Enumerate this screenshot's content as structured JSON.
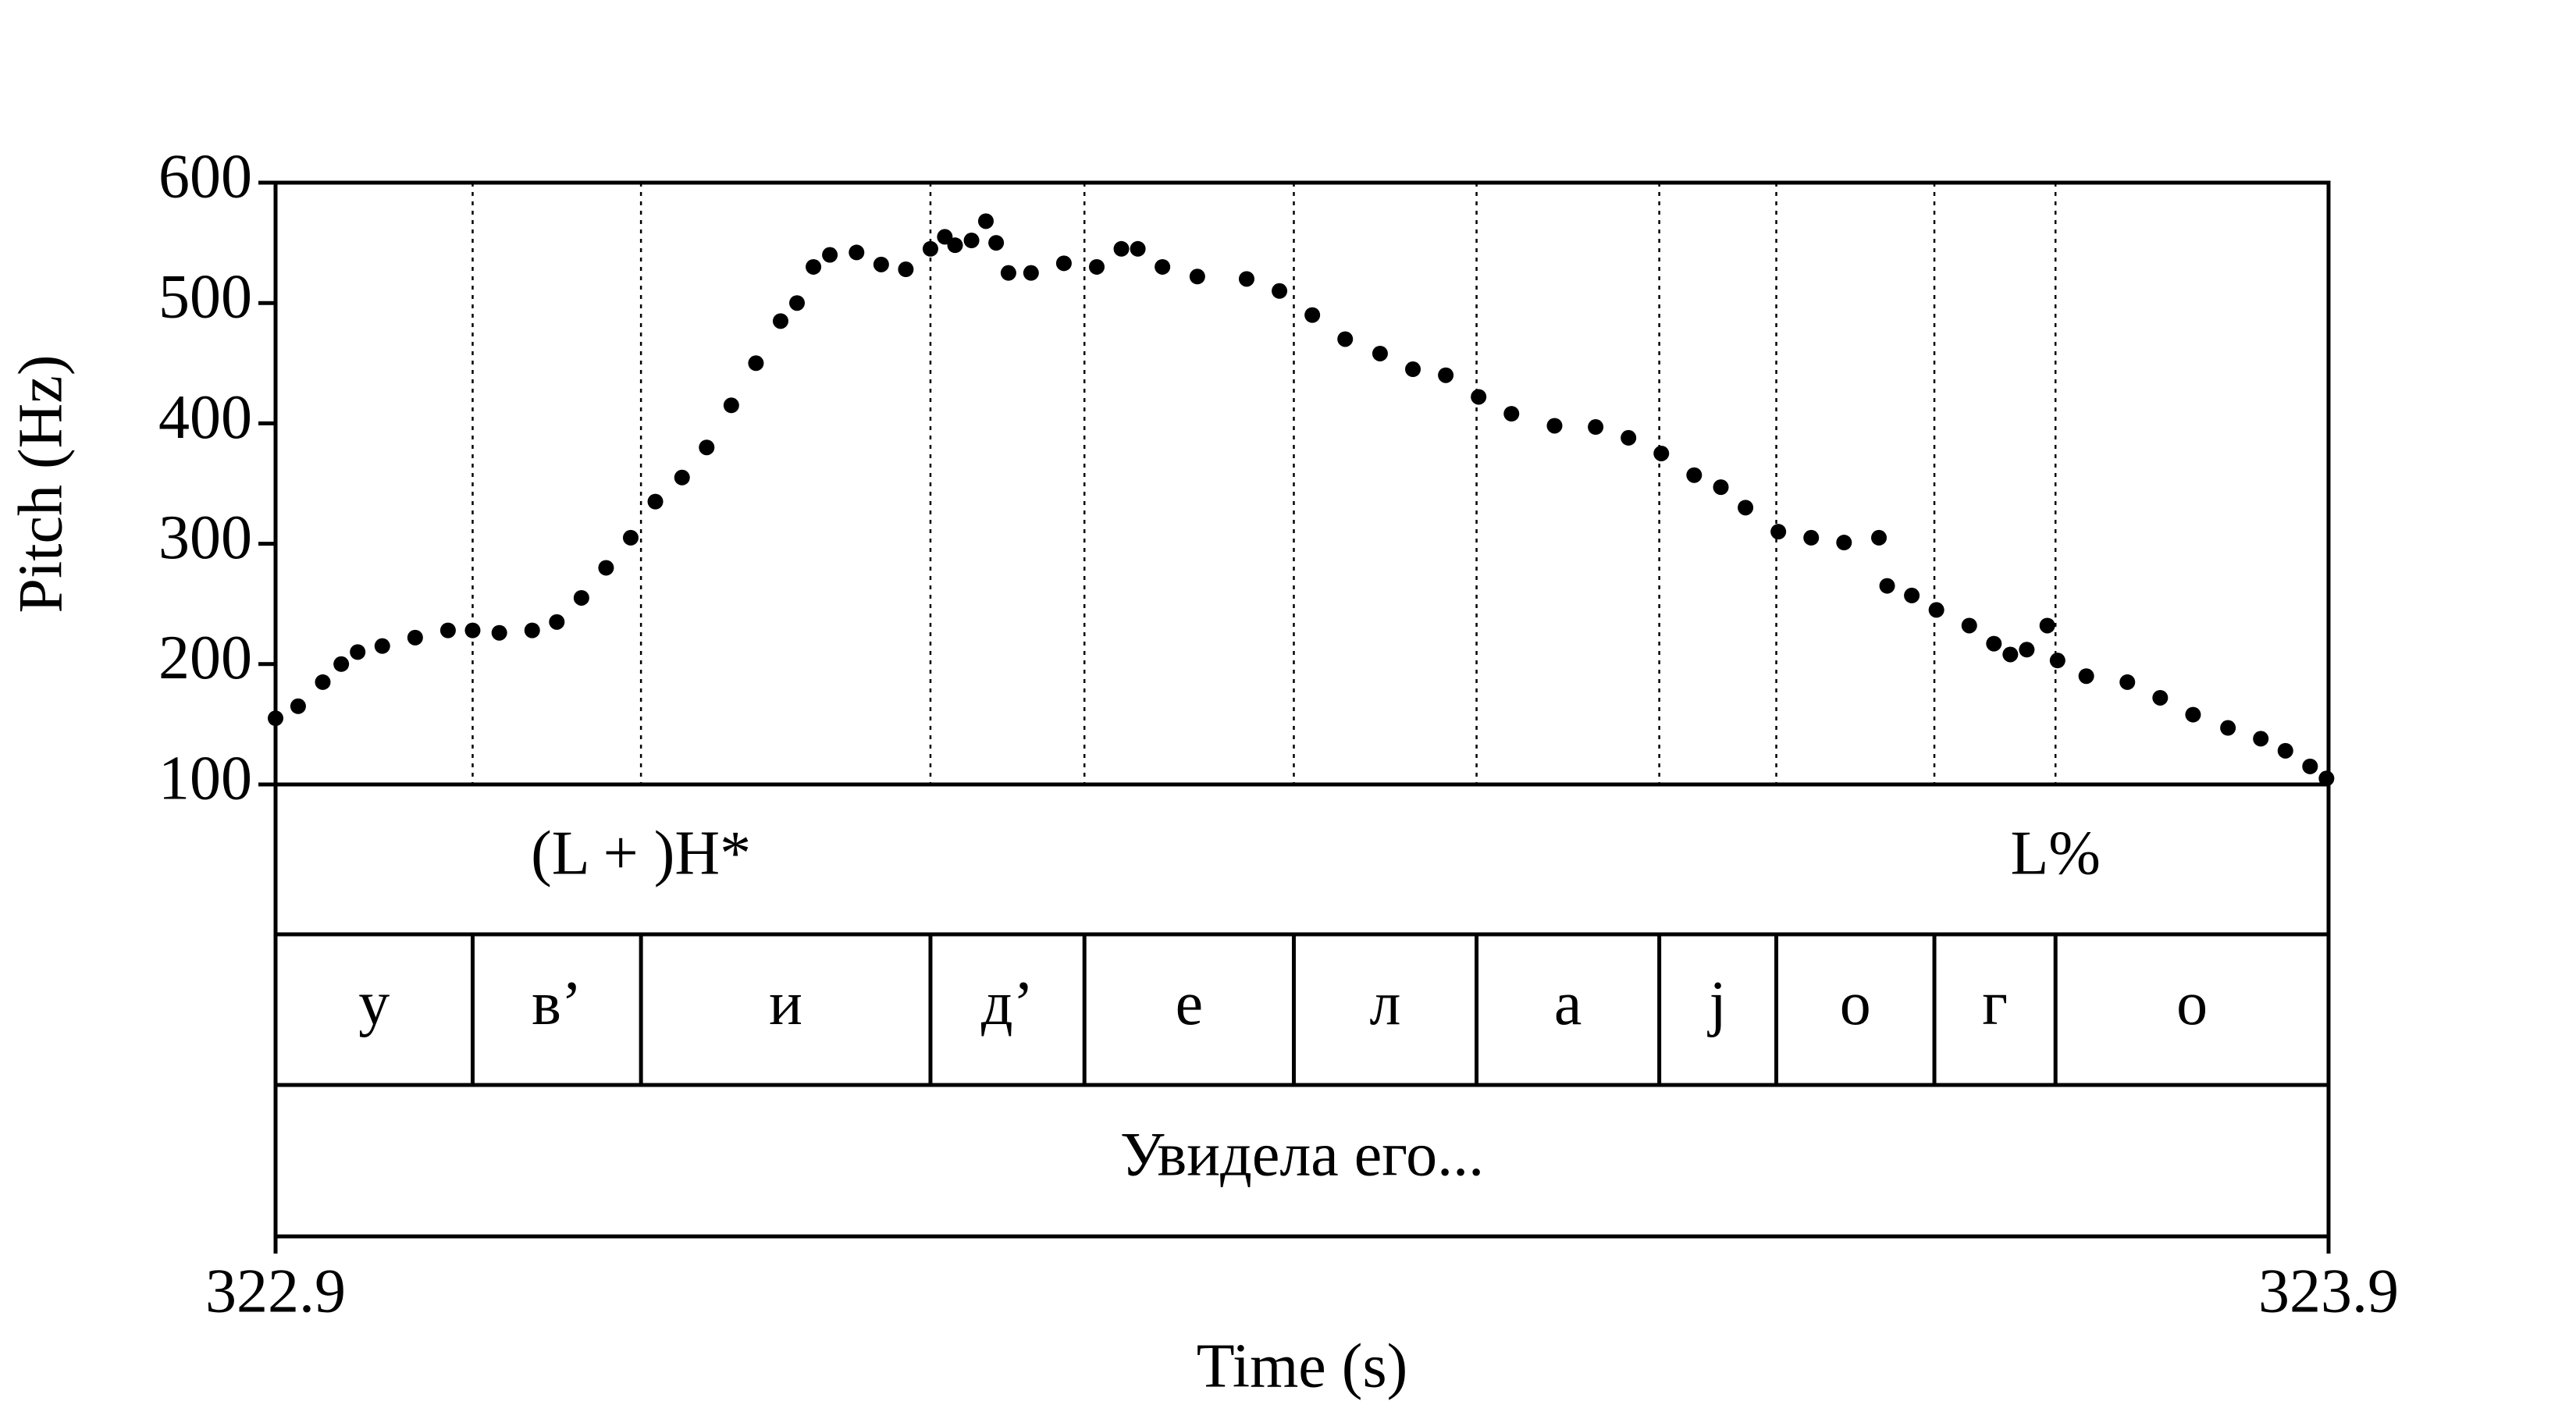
{
  "chart_data": {
    "type": "scatter",
    "x_label": "Time (s)",
    "y_label": "Pitch (Hz)",
    "xlim": [
      322.9,
      323.9
    ],
    "xticks": [
      322.9,
      323.9
    ],
    "ylim": [
      100,
      600
    ],
    "yticks": [
      100,
      200,
      300,
      400,
      500,
      600
    ],
    "color": "#000000",
    "x": [
      322.9,
      322.911,
      322.923,
      322.932,
      322.94,
      322.952,
      322.968,
      322.984,
      322.996,
      323.009,
      323.025,
      323.037,
      323.049,
      323.061,
      323.073,
      323.085,
      323.098,
      323.11,
      323.122,
      323.134,
      323.146,
      323.154,
      323.162,
      323.17,
      323.183,
      323.195,
      323.207,
      323.219,
      323.226,
      323.231,
      323.239,
      323.246,
      323.251,
      323.257,
      323.268,
      323.284,
      323.3,
      323.312,
      323.32,
      323.332,
      323.349,
      323.373,
      323.389,
      323.405,
      323.421,
      323.438,
      323.454,
      323.47,
      323.486,
      323.502,
      323.523,
      323.543,
      323.559,
      323.575,
      323.591,
      323.604,
      323.616,
      323.632,
      323.648,
      323.664,
      323.681,
      323.685,
      323.697,
      323.709,
      323.725,
      323.737,
      323.745,
      323.753,
      323.763,
      323.768,
      323.782,
      323.802,
      323.818,
      323.834,
      323.851,
      323.867,
      323.879,
      323.891,
      323.899
    ],
    "values": [
      155,
      165,
      185,
      200,
      210,
      215,
      222,
      228,
      228,
      226,
      228,
      235,
      255,
      280,
      305,
      335,
      355,
      380,
      415,
      450,
      485,
      500,
      530,
      540,
      542,
      532,
      528,
      545,
      555,
      548,
      552,
      568,
      550,
      525,
      525,
      533,
      530,
      545,
      545,
      530,
      522,
      520,
      510,
      490,
      470,
      458,
      445,
      440,
      422,
      408,
      398,
      397,
      388,
      375,
      357,
      347,
      330,
      310,
      305,
      301,
      305,
      265,
      257,
      245,
      232,
      217,
      208,
      212,
      232,
      203,
      190,
      185,
      172,
      158,
      147,
      138,
      128,
      115,
      105
    ],
    "tiers": [
      {
        "points": [
          {
            "time": 323.078,
            "label": "(L + )H*"
          },
          {
            "time": 323.767,
            "label": "L%"
          }
        ]
      },
      {
        "boundaries": [
          322.996,
          323.078,
          323.219,
          323.294,
          323.396,
          323.485,
          323.574,
          323.631,
          323.708,
          323.767
        ],
        "labels": [
          "у",
          "в’",
          "и",
          "д’",
          "е",
          "л",
          "а",
          "j",
          "о",
          "г",
          "о"
        ]
      },
      {
        "boundaries": [],
        "labels": [
          "Увидела его..."
        ]
      }
    ]
  }
}
